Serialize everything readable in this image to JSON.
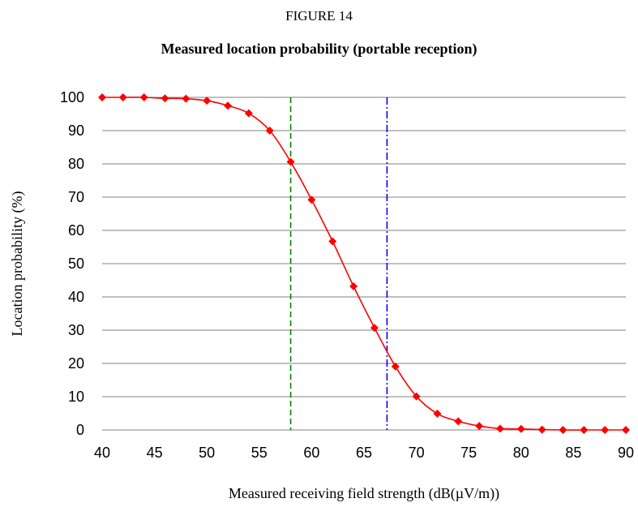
{
  "figure_label": "FIGURE 14",
  "chart_data": {
    "type": "line",
    "title": "Measured location probability (portable reception)",
    "xlabel": "Measured receiving field strength (dB(µV/m))",
    "ylabel": "Location probability (%)",
    "xlim": [
      40,
      90
    ],
    "ylim": [
      0,
      100
    ],
    "xticks": [
      40,
      45,
      50,
      55,
      60,
      65,
      70,
      75,
      80,
      85,
      90
    ],
    "yticks": [
      0,
      10,
      20,
      30,
      40,
      50,
      60,
      70,
      80,
      90,
      100
    ],
    "grid": "horizontal",
    "series": [
      {
        "color": "#ff0000",
        "marker": "diamond",
        "x": [
          40,
          42,
          44,
          46,
          48,
          50,
          52,
          54,
          56,
          58,
          60,
          62,
          64,
          66,
          68,
          70,
          72,
          74,
          76,
          78,
          80,
          82,
          84,
          86,
          88,
          90
        ],
        "y": [
          100,
          100,
          100,
          99.7,
          99.6,
          99,
          97.5,
          95.2,
          90,
          80.6,
          69.2,
          56.7,
          43.2,
          30.7,
          19.1,
          10.1,
          4.9,
          2.6,
          1.2,
          0.4,
          0.3,
          0.1,
          0,
          0,
          0,
          0
        ]
      }
    ],
    "reference_lines": [
      {
        "x": 58,
        "color": "#008000",
        "style": "dashed"
      },
      {
        "x": 67.2,
        "color": "#0000ff",
        "style": "dash-dot"
      }
    ]
  }
}
